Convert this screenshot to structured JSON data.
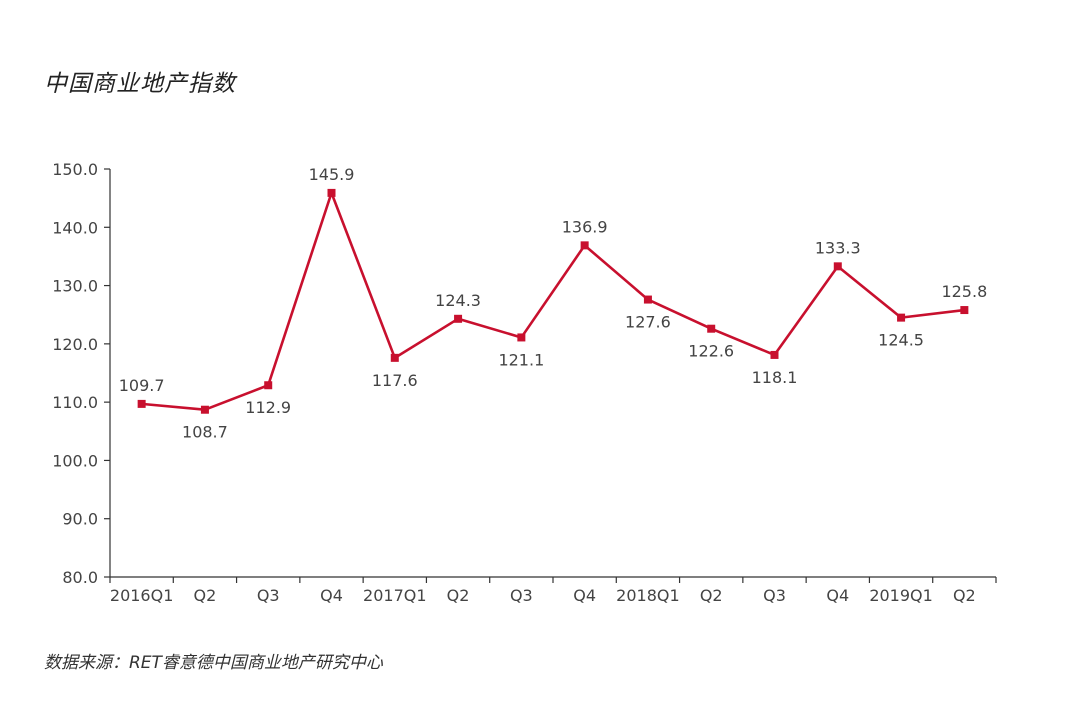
{
  "title": "中国商业地产指数",
  "source": "数据来源：RET睿意德中国商业地产研究中心",
  "colors": {
    "series": "#c8102e",
    "axis": "#333333",
    "text": "#444444"
  },
  "chart_data": {
    "type": "line",
    "title": "中国商业地产指数",
    "xlabel": "",
    "ylabel": "",
    "categories": [
      "2016Q1",
      "Q2",
      "Q3",
      "Q4",
      "2017Q1",
      "Q2",
      "Q3",
      "Q4",
      "2018Q1",
      "Q2",
      "Q3",
      "Q4",
      "2019Q1",
      "Q2"
    ],
    "values": [
      109.7,
      108.7,
      112.9,
      145.9,
      117.6,
      124.3,
      121.1,
      136.9,
      127.6,
      122.6,
      118.1,
      133.3,
      124.5,
      125.8
    ],
    "data_labels": [
      "109.7",
      "108.7",
      "112.9",
      "145.9",
      "117.6",
      "124.3",
      "121.1",
      "136.9",
      "127.6",
      "122.6",
      "118.1",
      "133.3",
      "124.5",
      "125.8"
    ],
    "label_positions": [
      "above",
      "below",
      "below",
      "above",
      "below",
      "above",
      "below",
      "above",
      "below",
      "below",
      "below",
      "above",
      "below",
      "above"
    ],
    "ylim": [
      80,
      150
    ],
    "yticks": [
      "80.0",
      "90.0",
      "100.0",
      "110.0",
      "120.0",
      "130.0",
      "140.0",
      "150.0"
    ],
    "grid": false,
    "legend": "none",
    "marker": "square"
  }
}
